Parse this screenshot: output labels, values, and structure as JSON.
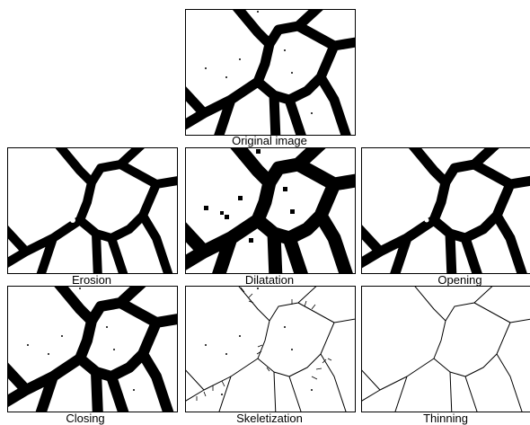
{
  "captions": {
    "original": "Original image",
    "erosion": "Erosion",
    "dilatation": "Dilatation",
    "opening": "Opening",
    "closing": "Closing",
    "skeletization": "Skeletization",
    "thinning": "Thinning"
  },
  "colors": {
    "foreground": "#000000",
    "background": "#ffffff"
  }
}
